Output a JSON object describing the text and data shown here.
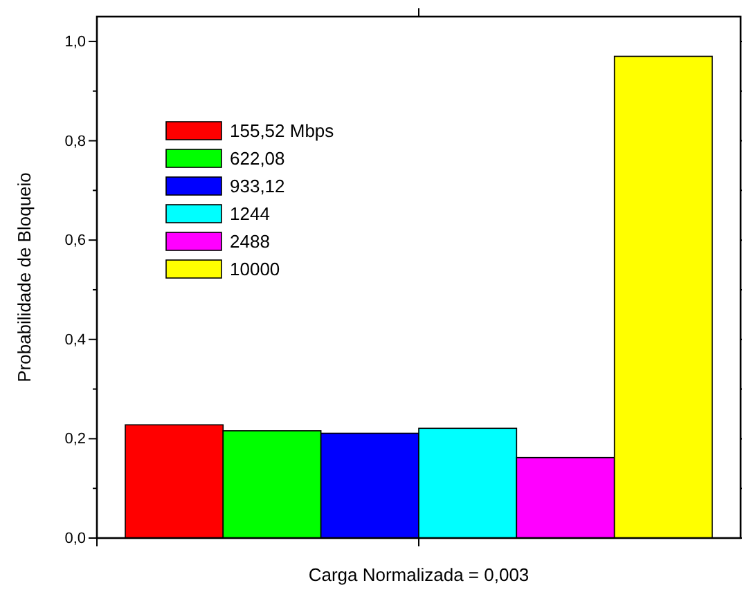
{
  "chart_data": {
    "type": "bar",
    "xlabel": "Carga Normalizada = 0,003",
    "ylabel": "Probabilidade de Bloqueio",
    "categories": [
      null
    ],
    "series": [
      {
        "name": "155,52 Mbps",
        "color": "#ff0000",
        "values": [
          0.228
        ]
      },
      {
        "name": "622,08",
        "color": "#00ff00",
        "values": [
          0.216
        ]
      },
      {
        "name": "933,12",
        "color": "#0000ff",
        "values": [
          0.211
        ]
      },
      {
        "name": "1244",
        "color": "#00ffff",
        "values": [
          0.221
        ]
      },
      {
        "name": "2488",
        "color": "#ff00ff",
        "values": [
          0.162
        ]
      },
      {
        "name": "10000",
        "color": "#ffff00",
        "values": [
          0.97
        ]
      }
    ],
    "ylim": [
      0,
      1.05
    ],
    "yticks": [
      {
        "value": 0,
        "label": "0,0"
      },
      {
        "value": 0.1,
        "label": null
      },
      {
        "value": 0.2,
        "label": "0,2"
      },
      {
        "value": 0.3,
        "label": null
      },
      {
        "value": 0.4,
        "label": "0,4"
      },
      {
        "value": 0.5,
        "label": null
      },
      {
        "value": 0.6,
        "label": "0,6"
      },
      {
        "value": 0.7,
        "label": null
      },
      {
        "value": 0.8,
        "label": "0,8"
      },
      {
        "value": 0.9,
        "label": null
      },
      {
        "value": 1.0,
        "label": "1,0"
      }
    ],
    "legend": "top left",
    "grid": false
  }
}
